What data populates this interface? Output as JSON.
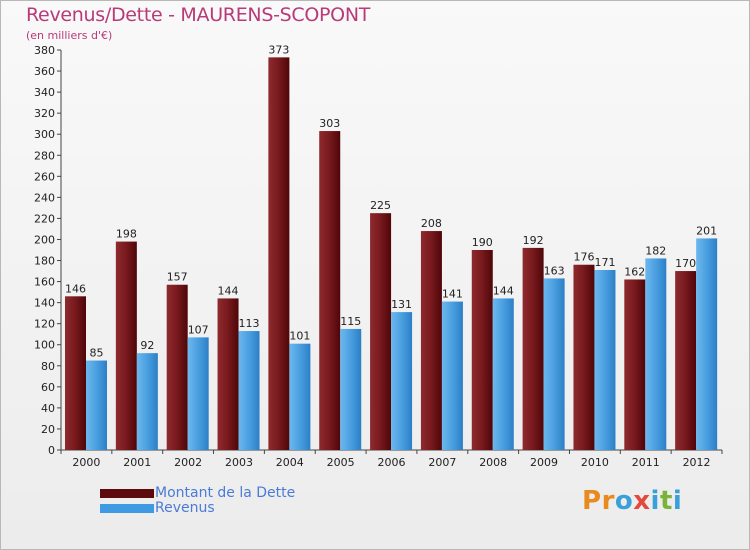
{
  "title": "Revenus/Dette - MAURENS-SCOPONT",
  "subtitle": "(en milliers d'€)",
  "colors": {
    "dette": "#7a1b1f",
    "revenus": "#4a9fe0",
    "title": "#b83a78",
    "legend_text": "#4a7bd8"
  },
  "legend": [
    {
      "label": "Montant de la Dette",
      "color": "#5c0a0e"
    },
    {
      "label": "Revenus",
      "color": "#3d9ae3"
    }
  ],
  "logo": {
    "text": "Proxiti",
    "letters": [
      {
        "ch": "P",
        "color": "#e88a1d"
      },
      {
        "ch": "r",
        "color": "#e88a1d"
      },
      {
        "ch": "o",
        "color": "#3aa0d8"
      },
      {
        "ch": "x",
        "color": "#e24a3b"
      },
      {
        "ch": "i",
        "color": "#3aa0d8"
      },
      {
        "ch": "t",
        "color": "#7ab33a"
      },
      {
        "ch": "i",
        "color": "#3aa0d8"
      }
    ]
  },
  "chart_data": {
    "type": "bar",
    "title": "Revenus/Dette - MAURENS-SCOPONT",
    "ylabel": "(en milliers d'€)",
    "xlabel": "",
    "categories": [
      "2000",
      "2001",
      "2002",
      "2003",
      "2004",
      "2005",
      "2006",
      "2007",
      "2008",
      "2009",
      "2010",
      "2011",
      "2012"
    ],
    "series": [
      {
        "name": "Montant de la Dette",
        "values": [
          146,
          198,
          157,
          144,
          373,
          303,
          225,
          208,
          190,
          192,
          176,
          162,
          170
        ]
      },
      {
        "name": "Revenus",
        "values": [
          85,
          92,
          107,
          113,
          101,
          115,
          131,
          141,
          144,
          163,
          171,
          182,
          201
        ]
      }
    ],
    "ylim": [
      0,
      380
    ],
    "ytick_step": 20,
    "grid": false,
    "legend_position": "bottom-left"
  }
}
